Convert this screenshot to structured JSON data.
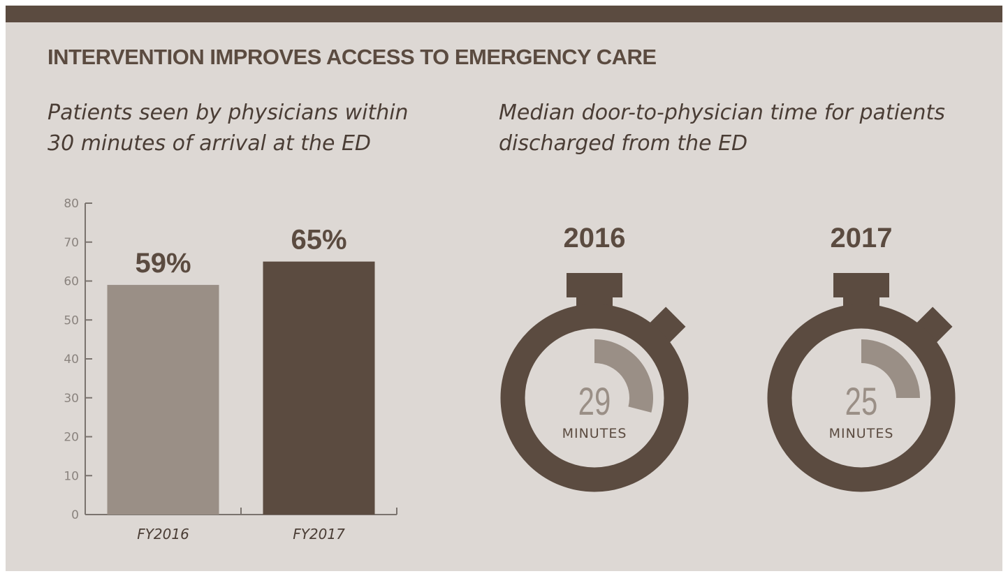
{
  "title": "INTERVENTION IMPROVES ACCESS TO EMERGENCY CARE",
  "colors": {
    "dark": "#5b4b40",
    "light": "#9a8f86",
    "background": "#ddd8d4",
    "axis": "#7a736e"
  },
  "chart_data": [
    {
      "type": "bar",
      "title": "Patients seen by physicians within 30 minutes of arrival at the ED",
      "title_lines": [
        "Patients seen by physicians within",
        "30 minutes of arrival at the ED"
      ],
      "categories": [
        "FY2016",
        "FY2017"
      ],
      "values": [
        59,
        65
      ],
      "data_labels": [
        "59%",
        "65%"
      ],
      "bar_colors": [
        "#9a8f86",
        "#5b4b40"
      ],
      "ylim": [
        0,
        80
      ],
      "yticks": [
        0,
        10,
        20,
        30,
        40,
        50,
        60,
        70,
        80
      ],
      "grid": false,
      "xlabel": "",
      "ylabel": ""
    },
    {
      "type": "gauge",
      "title": "Median door-to-physician time for patients discharged from the ED",
      "title_lines": [
        "Median door-to-physician time for patients",
        "discharged from the ED"
      ],
      "items": [
        {
          "year": "2016",
          "value": 29,
          "unit": "MINUTES"
        },
        {
          "year": "2017",
          "value": 25,
          "unit": "MINUTES"
        }
      ]
    }
  ]
}
